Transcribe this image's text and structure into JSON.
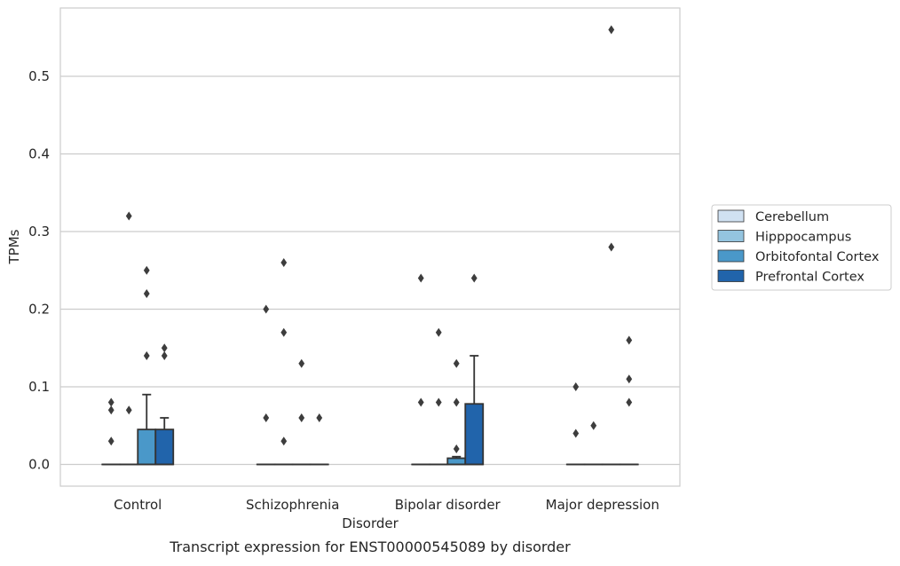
{
  "chart_data": {
    "type": "boxplot",
    "caption": "Transcript expression for ENST00000545089 by disorder",
    "xlabel": "Disorder",
    "ylabel": "TPMs",
    "ylim": [
      -0.028,
      0.588
    ],
    "yticks": [
      "0.0",
      "0.1",
      "0.2",
      "0.3",
      "0.4",
      "0.5"
    ],
    "ytick_values": [
      0,
      0.1,
      0.2,
      0.3,
      0.4,
      0.5
    ],
    "grid": "horizontal",
    "legend_position": "outside-right",
    "categories": [
      "Control",
      "Schizophrenia",
      "Bipolar disorder",
      "Major depression"
    ],
    "series": [
      {
        "name": "Cerebellum",
        "color": "#d0e1f2",
        "boxes": [
          {
            "q1": 0,
            "median": 0,
            "q3": 0,
            "whisker_low": 0,
            "whisker_high": 0,
            "outliers": [
              0.03,
              0.07,
              0.08
            ]
          },
          {
            "q1": 0,
            "median": 0,
            "q3": 0,
            "whisker_low": 0,
            "whisker_high": 0,
            "outliers": [
              0.06,
              0.2
            ]
          },
          {
            "q1": 0,
            "median": 0,
            "q3": 0,
            "whisker_low": 0,
            "whisker_high": 0,
            "outliers": [
              0.08,
              0.24
            ]
          },
          {
            "q1": 0,
            "median": 0,
            "q3": 0,
            "whisker_low": 0,
            "whisker_high": 0,
            "outliers": [
              0.04,
              0.1
            ]
          }
        ]
      },
      {
        "name": "Hipppocampus",
        "color": "#94c4df",
        "boxes": [
          {
            "q1": 0,
            "median": 0,
            "q3": 0,
            "whisker_low": 0,
            "whisker_high": 0,
            "outliers": [
              0.07,
              0.32
            ]
          },
          {
            "q1": 0,
            "median": 0,
            "q3": 0,
            "whisker_low": 0,
            "whisker_high": 0,
            "outliers": [
              0.03,
              0.17,
              0.26
            ]
          },
          {
            "q1": 0,
            "median": 0,
            "q3": 0,
            "whisker_low": 0,
            "whisker_high": 0,
            "outliers": [
              0.08,
              0.17
            ]
          },
          {
            "q1": 0,
            "median": 0,
            "q3": 0,
            "whisker_low": 0,
            "whisker_high": 0,
            "outliers": [
              0.05
            ]
          }
        ]
      },
      {
        "name": "Orbitofontal Cortex",
        "color": "#4a98c9",
        "boxes": [
          {
            "q1": 0,
            "median": 0,
            "q3": 0.045,
            "whisker_low": 0,
            "whisker_high": 0.09,
            "outliers": [
              0.14,
              0.22,
              0.25
            ]
          },
          {
            "q1": 0,
            "median": 0,
            "q3": 0,
            "whisker_low": 0,
            "whisker_high": 0,
            "outliers": [
              0.06,
              0.13
            ]
          },
          {
            "q1": 0,
            "median": 0,
            "q3": 0.008,
            "whisker_low": 0,
            "whisker_high": 0.01,
            "outliers": [
              0.02,
              0.08,
              0.13
            ]
          },
          {
            "q1": 0,
            "median": 0,
            "q3": 0,
            "whisker_low": 0,
            "whisker_high": 0,
            "outliers": [
              0.28,
              0.56
            ]
          }
        ]
      },
      {
        "name": "Prefrontal Cortex",
        "color": "#2164ab",
        "boxes": [
          {
            "q1": 0,
            "median": 0,
            "q3": 0.045,
            "whisker_low": 0,
            "whisker_high": 0.06,
            "outliers": [
              0.14,
              0.15
            ]
          },
          {
            "q1": 0,
            "median": 0,
            "q3": 0,
            "whisker_low": 0,
            "whisker_high": 0,
            "outliers": [
              0.06
            ]
          },
          {
            "q1": 0,
            "median": 0,
            "q3": 0.078,
            "whisker_low": 0,
            "whisker_high": 0.14,
            "outliers": [
              0.24
            ]
          },
          {
            "q1": 0,
            "median": 0,
            "q3": 0,
            "whisker_low": 0,
            "whisker_high": 0,
            "outliers": [
              0.08,
              0.11,
              0.16
            ]
          }
        ]
      }
    ],
    "colors": {
      "grid": "#cccccc",
      "frame": "#cccccc",
      "box_edge": "#333333",
      "outlier": "#3d3d3d"
    }
  }
}
